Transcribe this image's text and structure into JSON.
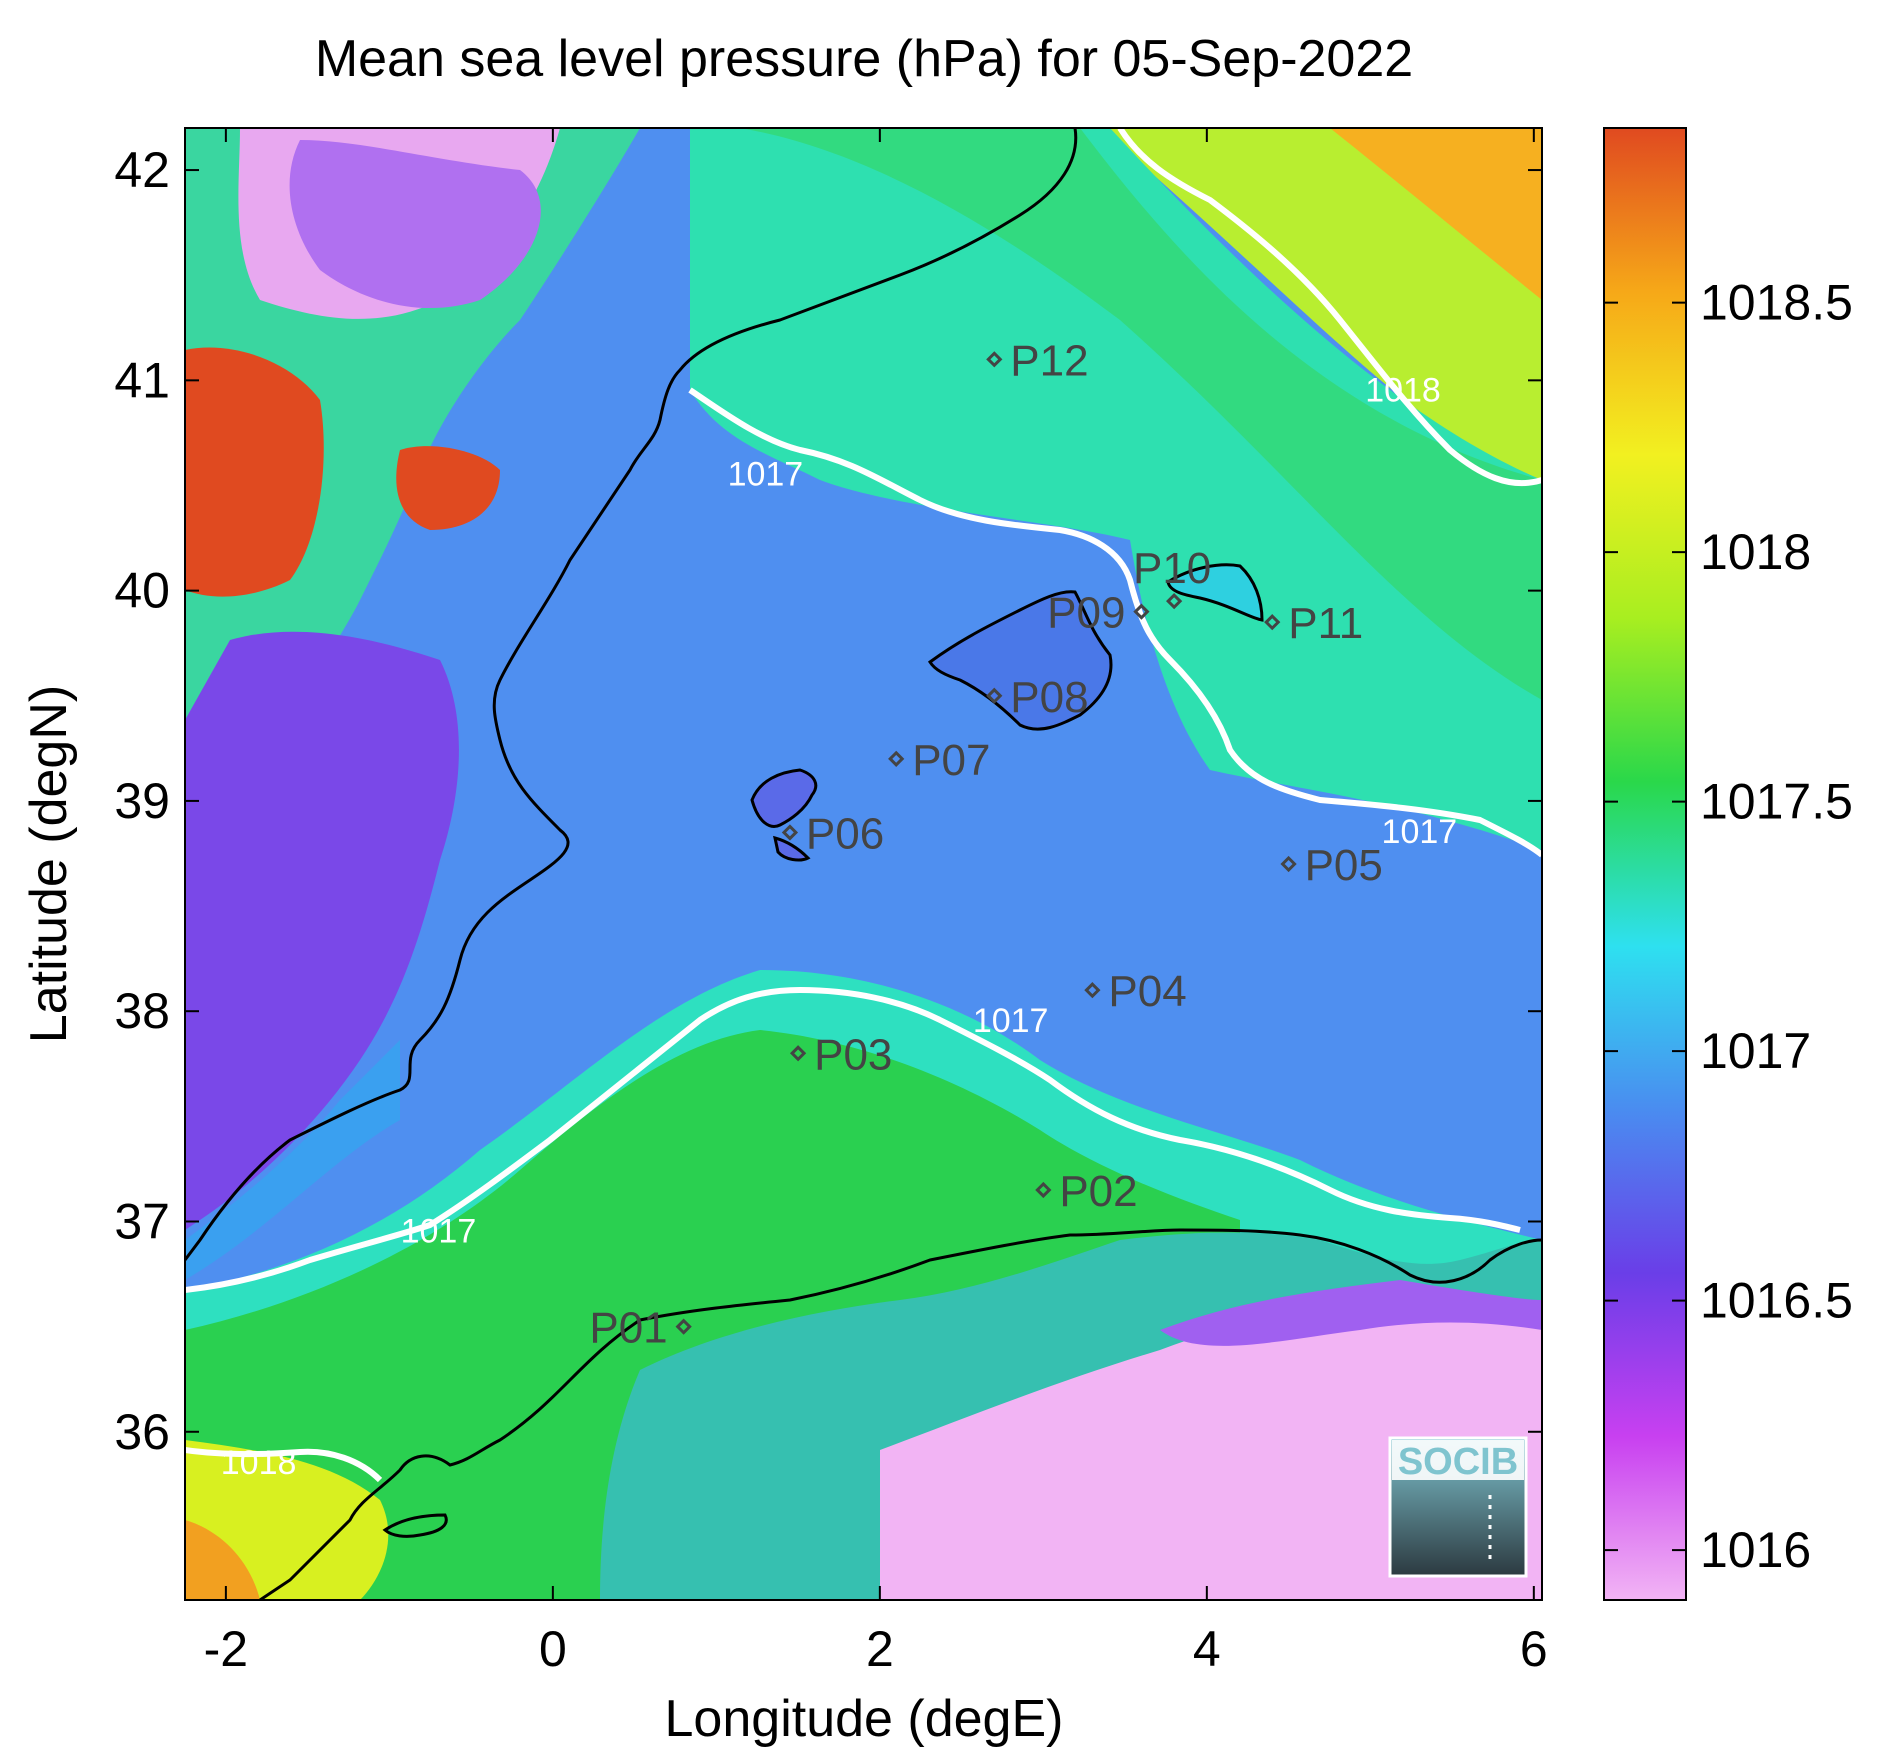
{
  "title": "Mean sea level pressure (hPa) for 05-Sep-2022",
  "axes": {
    "xlabel": "Longitude (degE)",
    "ylabel": "Latitude (degN)",
    "xlim": [
      -2.25,
      6.05
    ],
    "ylim": [
      35.2,
      42.2
    ],
    "xticks": [
      -2,
      0,
      2,
      4,
      6
    ],
    "yticks": [
      36,
      37,
      38,
      39,
      40,
      41,
      42
    ]
  },
  "colorbar": {
    "range": [
      1015.9,
      1018.85
    ],
    "ticks": [
      "1016",
      "1016.5",
      "1017",
      "1017.5",
      "1018",
      "1018.5"
    ],
    "tick_values": [
      1016,
      1016.5,
      1017,
      1017.5,
      1018,
      1018.5
    ],
    "colors": [
      "#f2b4f4",
      "#c840f0",
      "#6a3ee8",
      "#4a8cf0",
      "#2ee0f0",
      "#2ad84a",
      "#a8ee20",
      "#f2f020",
      "#f6a818",
      "#e04a20"
    ]
  },
  "contour_labels": [
    {
      "text": "1017",
      "lon": 1.3,
      "lat": 40.5
    },
    {
      "text": "1018",
      "lon": 5.2,
      "lat": 40.9
    },
    {
      "text": "1017",
      "lon": 5.3,
      "lat": 38.8
    },
    {
      "text": "1017",
      "lon": 2.8,
      "lat": 37.9
    },
    {
      "text": "1017",
      "lon": -0.7,
      "lat": 36.9
    },
    {
      "text": "1018",
      "lon": -1.8,
      "lat": 35.8
    }
  ],
  "points": [
    {
      "label": "P01",
      "lon": 0.8,
      "lat": 36.5,
      "side": "left"
    },
    {
      "label": "P02",
      "lon": 3.0,
      "lat": 37.15,
      "side": "right"
    },
    {
      "label": "P03",
      "lon": 1.5,
      "lat": 37.8,
      "side": "right"
    },
    {
      "label": "P04",
      "lon": 3.3,
      "lat": 38.1,
      "side": "right"
    },
    {
      "label": "P05",
      "lon": 4.5,
      "lat": 38.7,
      "side": "right"
    },
    {
      "label": "P06",
      "lon": 1.45,
      "lat": 38.85,
      "side": "right"
    },
    {
      "label": "P07",
      "lon": 2.1,
      "lat": 39.2,
      "side": "right"
    },
    {
      "label": "P08",
      "lon": 2.7,
      "lat": 39.5,
      "side": "right"
    },
    {
      "label": "P09",
      "lon": 3.6,
      "lat": 39.9,
      "side": "left"
    },
    {
      "label": "P10",
      "lon": 3.8,
      "lat": 39.95,
      "side": "above"
    },
    {
      "label": "P11",
      "lon": 4.4,
      "lat": 39.85,
      "side": "right"
    },
    {
      "label": "P12",
      "lon": 2.7,
      "lat": 41.1,
      "side": "right"
    }
  ],
  "logo": {
    "text": "SOCIB"
  }
}
